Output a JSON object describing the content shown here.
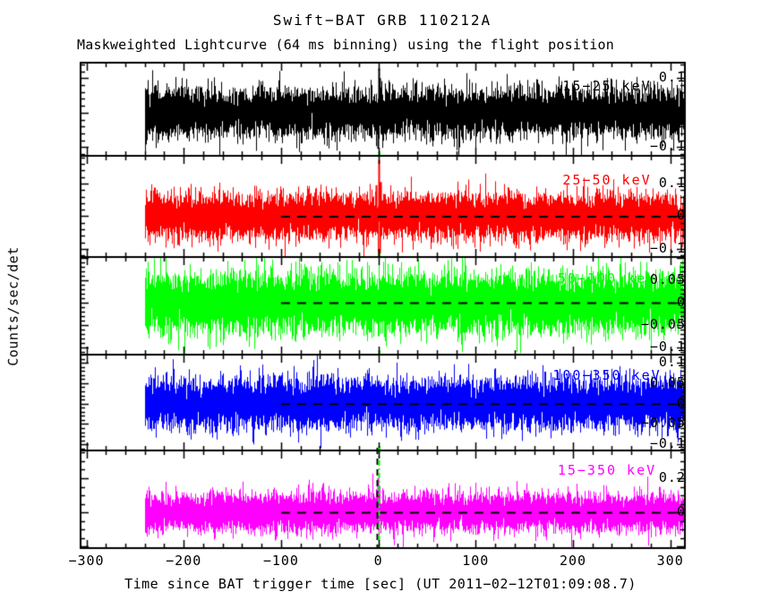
{
  "title": "Swift−BAT GRB 110212A",
  "subtitle": "Maskweighted Lightcurve (64 ms binning) using the flight position",
  "yaxis": {
    "label": "Counts/sec/det"
  },
  "xaxis": {
    "label": "Time since BAT trigger time [sec] (UT 2011−02−12T01:09:08.7)",
    "xlim": [
      -306,
      315
    ],
    "major_ticks": [
      -300,
      -200,
      -100,
      0,
      100,
      200,
      300
    ],
    "tick_labels": [
      "−300",
      "−200",
      "−100",
      "0",
      "100",
      "200",
      "300"
    ],
    "minor_tick_step": 20
  },
  "zero_line": {
    "style": "dashed",
    "t_start": -100,
    "color": "#000000"
  },
  "chart_data": [
    {
      "type": "line",
      "band": "15−25 keV",
      "color": "#000000",
      "t_range": [
        -240,
        314
      ],
      "bin_seconds": 0.064,
      "ylim": [
        -0.125,
        0.145
      ],
      "major_ticks": [
        0.1,
        0,
        -0.1
      ],
      "yticks": [
        {
          "v": 0.1,
          "label": "0.1"
        },
        {
          "v": 0,
          "label": "0"
        },
        {
          "v": -0.1,
          "label": "−0.1"
        }
      ],
      "ytick_minor_step": 0.02,
      "noise_mean": 0,
      "noise_std": 0.034,
      "zero_line_dashed": true,
      "spikes": [
        {
          "t": 0,
          "v": 0.128
        },
        {
          "t": 1.5,
          "v": 0.1
        },
        {
          "t": -1,
          "v": -0.105
        }
      ],
      "markers": [
        {
          "type": "axis-tick",
          "color": "#00ff00",
          "t": 0
        }
      ]
    },
    {
      "type": "line",
      "band": "25−50 keV",
      "color": "#ff0000",
      "t_range": [
        -240,
        314
      ],
      "bin_seconds": 0.064,
      "ylim": [
        -0.125,
        0.185
      ],
      "major_ticks": [
        0.1,
        0,
        -0.1
      ],
      "yticks": [
        {
          "v": 0.1,
          "label": "0.1"
        },
        {
          "v": 0,
          "label": "0"
        },
        {
          "v": -0.1,
          "label": "−0.1"
        }
      ],
      "ytick_minor_step": 0.02,
      "noise_mean": 0,
      "noise_std": 0.034,
      "zero_line_dashed": true,
      "spikes": [
        {
          "t": 0,
          "v": 0.172
        },
        {
          "t": 2,
          "v": 0.105
        },
        {
          "t": -2,
          "v": 0.095
        },
        {
          "t": 1,
          "v": -0.115
        }
      ],
      "markers": [
        {
          "type": "axis-tick",
          "color": "#00ff00",
          "t": 0
        }
      ]
    },
    {
      "type": "line",
      "band": "50−100 keV",
      "color": "#00ff00",
      "t_range": [
        -240,
        314
      ],
      "bin_seconds": 0.064,
      "ylim": [
        -0.116,
        0.102
      ],
      "major_ticks": [
        0.1,
        0.05,
        0,
        -0.05,
        -0.1
      ],
      "yticks": [
        {
          "v": 0.05,
          "label": "0.05"
        },
        {
          "v": 0,
          "label": "0"
        },
        {
          "v": -0.05,
          "label": "−0.05"
        },
        {
          "v": -0.1,
          "label": "−0.1"
        }
      ],
      "ytick_minor_step": 0.01,
      "noise_mean": 0,
      "noise_std": 0.032,
      "zero_line_dashed": true,
      "spikes": [],
      "markers": [
        {
          "type": "axis-tick",
          "color": "#00ff00",
          "t": 0
        }
      ]
    },
    {
      "type": "line",
      "band": "100−350 keV",
      "color": "#0000ff",
      "t_range": [
        -240,
        314
      ],
      "bin_seconds": 0.064,
      "ylim": [
        -0.115,
        0.12
      ],
      "major_ticks": [
        0.1,
        0.05,
        0,
        -0.05,
        -0.1
      ],
      "yticks": [
        {
          "v": 0.1,
          "label": "0.1"
        },
        {
          "v": 0.05,
          "label": "0.05"
        },
        {
          "v": 0,
          "label": "0"
        },
        {
          "v": -0.05,
          "label": "−0.05"
        },
        {
          "v": -0.1,
          "label": "−0.1"
        }
      ],
      "ytick_minor_step": 0.01,
      "noise_mean": 0,
      "noise_std": 0.03,
      "zero_line_dashed": true,
      "spikes": [],
      "markers": [
        {
          "type": "axis-tick",
          "color": "#00ff00",
          "t": 0
        }
      ]
    },
    {
      "type": "line",
      "band": "15−350 keV",
      "color": "#ff00ff",
      "t_range": [
        -240,
        314
      ],
      "bin_seconds": 0.064,
      "ylim": [
        -0.21,
        0.363
      ],
      "major_ticks": [
        0.2,
        0,
        -0.2
      ],
      "yticks": [
        {
          "v": 0.2,
          "label": "0.2"
        },
        {
          "v": 0,
          "label": "0"
        }
      ],
      "ytick_minor_step": 0.05,
      "noise_mean": 0,
      "noise_std": 0.055,
      "zero_line_dashed": true,
      "spikes": [
        {
          "t": -1,
          "v": 0.2
        }
      ],
      "markers": [
        {
          "type": "vline",
          "style": "dashed",
          "color": "#000000",
          "t": -1.5
        },
        {
          "type": "vline",
          "style": "dashdot",
          "color": "#00ff00",
          "t": 0.5
        }
      ]
    }
  ]
}
